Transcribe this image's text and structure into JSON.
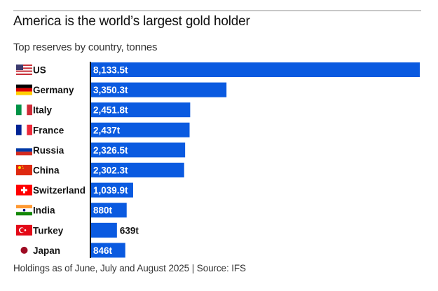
{
  "header": {
    "title": "America is the world’s largest gold holder",
    "subtitle": "Top reserves by country, tonnes"
  },
  "footer": {
    "note": "Holdings as of June, July and August 2025 | Source: IFS"
  },
  "colors": {
    "bar": "#0a5ae0",
    "axis": "#121212",
    "label_inside": "#ffffff",
    "label_outside": "#121212"
  },
  "chart_data": {
    "type": "bar",
    "orientation": "horizontal",
    "title": "America is the world’s largest gold holder",
    "subtitle": "Top reserves by country, tonnes",
    "xlabel": "",
    "ylabel": "",
    "unit_suffix": "t",
    "xlim": [
      0,
      8133.5
    ],
    "grid": false,
    "categories": [
      "US",
      "Germany",
      "Italy",
      "France",
      "Russia",
      "China",
      "Switzerland",
      "India",
      "Turkey",
      "Japan"
    ],
    "values": [
      8133.5,
      3350.3,
      2451.8,
      2437,
      2326.5,
      2302.3,
      1039.9,
      880,
      639,
      846
    ],
    "value_labels": [
      "8,133.5t",
      "3,350.3t",
      "2,451.8t",
      "2,437t",
      "2,326.5t",
      "2,302.3t",
      "1,039.9t",
      "880t",
      "639t",
      "846t"
    ],
    "label_outside": [
      false,
      false,
      false,
      false,
      false,
      false,
      false,
      false,
      true,
      false
    ],
    "flags": [
      "us-flag-icon",
      "germany-flag-icon",
      "italy-flag-icon",
      "france-flag-icon",
      "russia-flag-icon",
      "china-flag-icon",
      "switzerland-flag-icon",
      "india-flag-icon",
      "turkey-flag-icon",
      "japan-flag-icon"
    ]
  }
}
